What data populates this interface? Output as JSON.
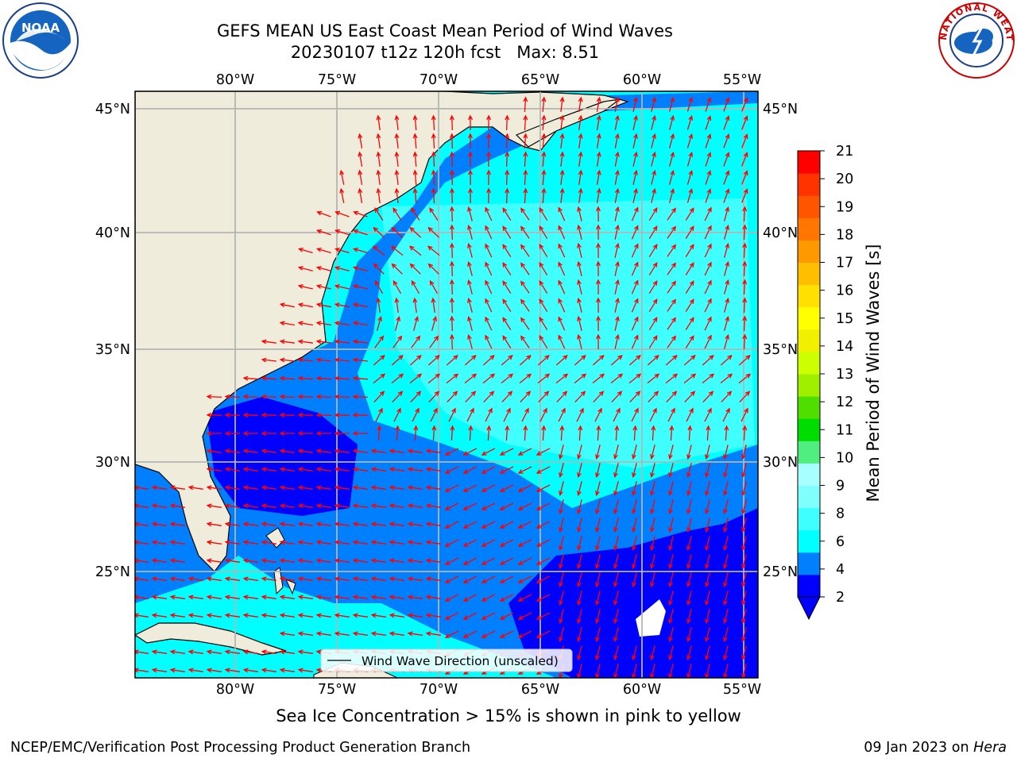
{
  "header": {
    "title_line1": "GEFS MEAN US East Coast Mean Period of Wind Waves",
    "title_line2": "20230107 t12z 120h fcst   Max: 8.51",
    "left_logo": "NOAA",
    "right_logo": "NATIONAL WEATHER SERVICE"
  },
  "map": {
    "lon_labels": [
      "80°W",
      "75°W",
      "70°W",
      "65°W",
      "60°W",
      "55°W"
    ],
    "lat_labels": [
      "45°N",
      "40°N",
      "35°N",
      "30°N",
      "25°N"
    ],
    "legend": "Wind Wave Direction (unscaled)",
    "arrow_color": "#ff0000",
    "land_color": "#efecdc"
  },
  "colorbar": {
    "label": "Mean Period of Wind Waves [s]",
    "ticks": [
      "21",
      "20",
      "19",
      "18",
      "17",
      "16",
      "15",
      "14",
      "13",
      "12",
      "11",
      "10",
      "9",
      "8",
      "6",
      "4",
      "2"
    ],
    "colors": [
      "#0000ff",
      "#0080ff",
      "#00ffff",
      "#40ffff",
      "#80ffff",
      "#a8ffff",
      "#50ee80",
      "#00dd00",
      "#50dd00",
      "#a0ee00",
      "#ccff00",
      "#f0f000",
      "#ffff00",
      "#ffe000",
      "#ffbf00",
      "#ff9900",
      "#ff7700",
      "#ff5500",
      "#ff3300",
      "#ff0000"
    ]
  },
  "footer": {
    "sea_ice_note": "Sea Ice Concentration > 15% is shown in pink to yellow",
    "credit_left": "NCEP/EMC/Verification Post Processing Product Generation Branch",
    "credit_date": "09 Jan 2023 on",
    "credit_machine": "Hera"
  }
}
